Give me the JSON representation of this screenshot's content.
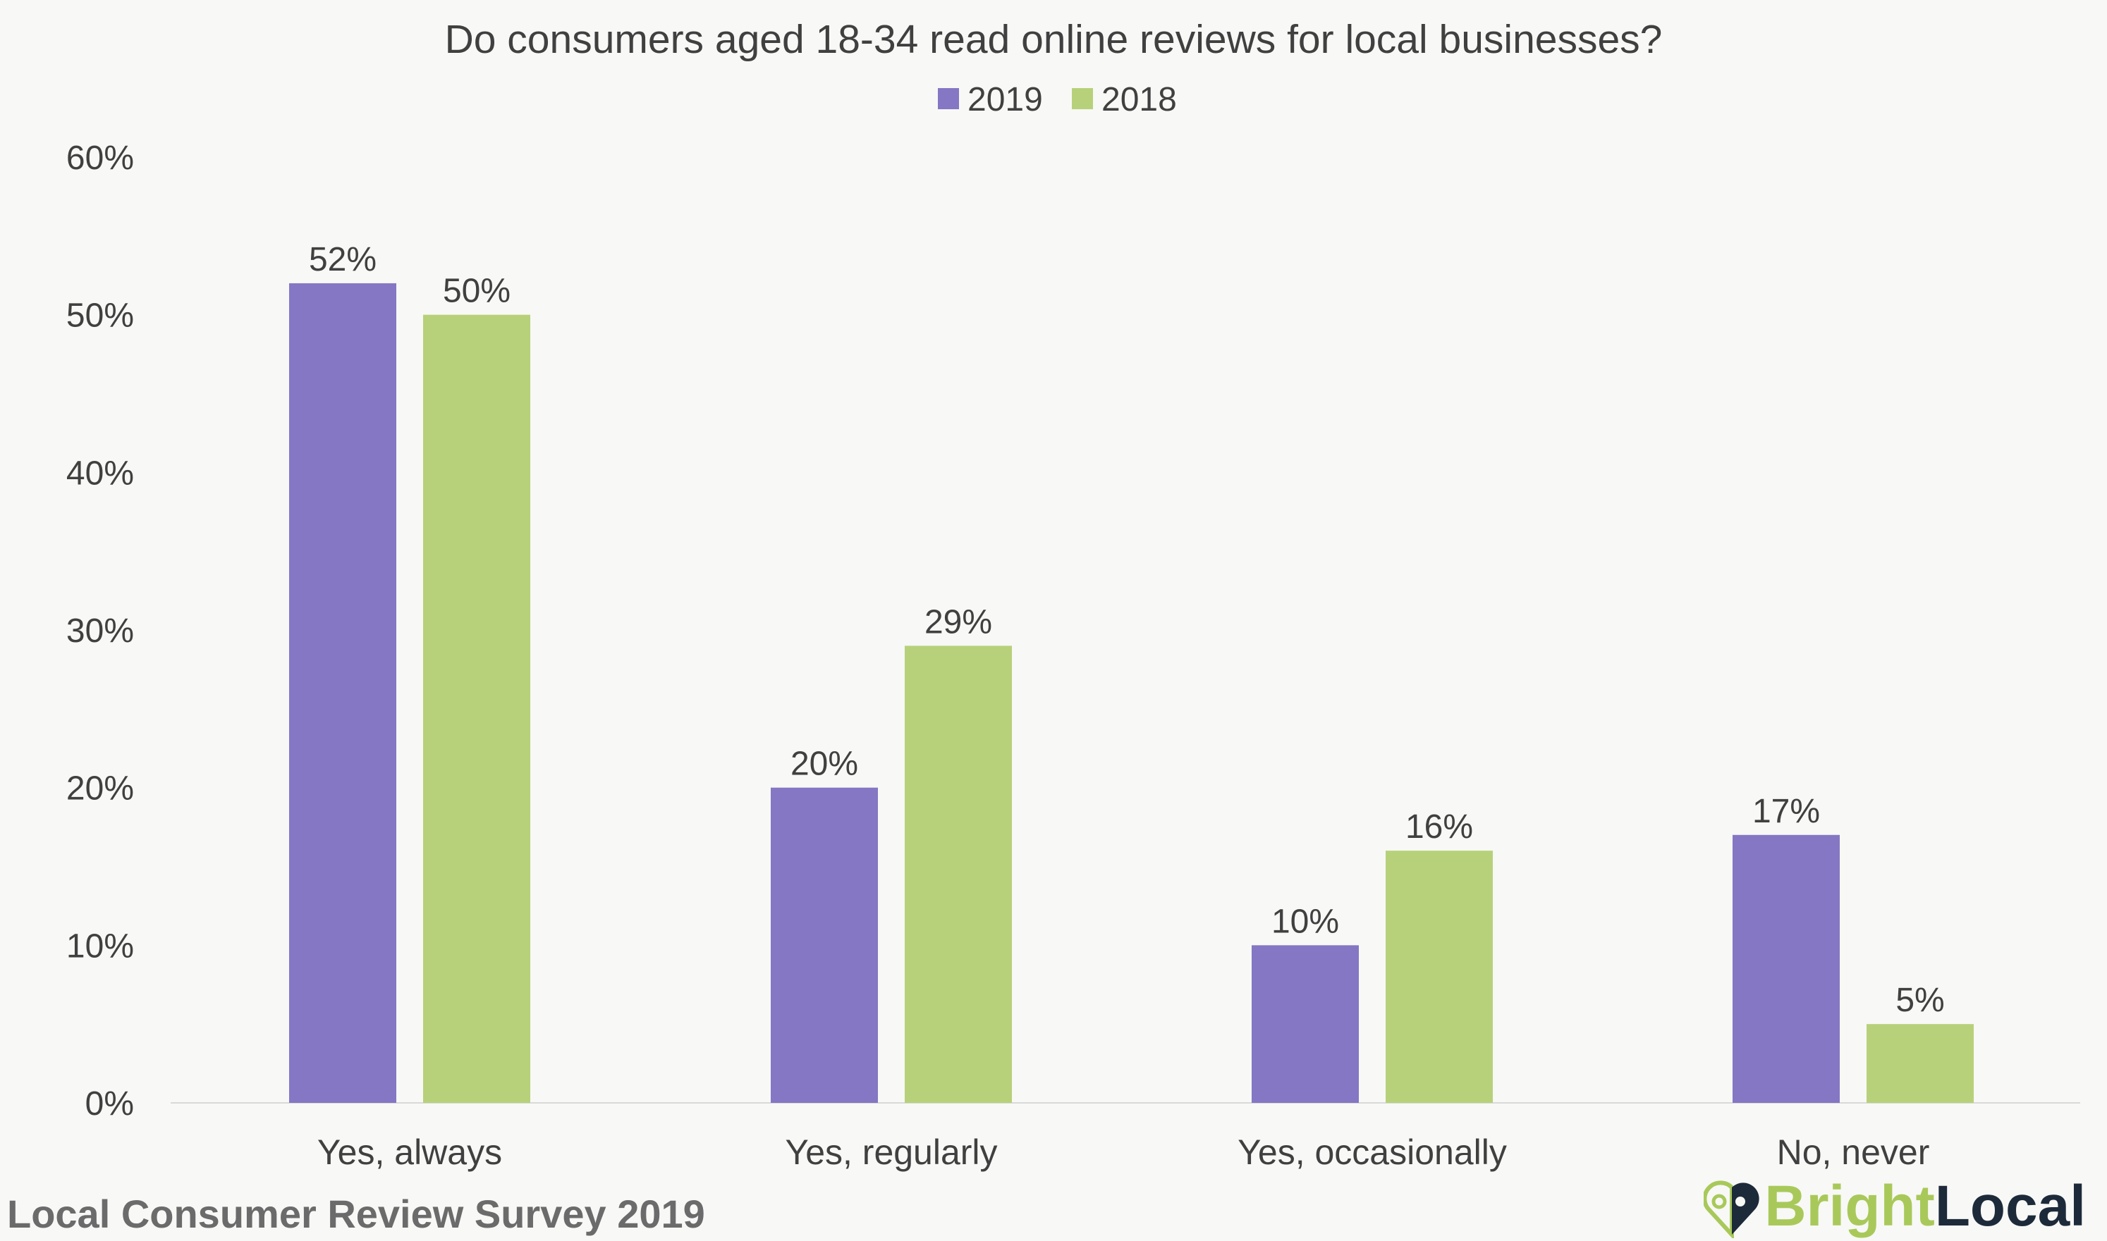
{
  "chart_data": {
    "type": "bar",
    "title": "Do consumers aged 18-34 read online reviews for local businesses?",
    "categories": [
      "Yes, always",
      "Yes, regularly",
      "Yes, occasionally",
      "No, never"
    ],
    "series": [
      {
        "name": "2019",
        "values": [
          52,
          20,
          10,
          17
        ],
        "labels": [
          "52%",
          "20%",
          "10%",
          "17%"
        ],
        "color": "#8577c4"
      },
      {
        "name": "2018",
        "values": [
          50,
          29,
          16,
          5
        ],
        "labels": [
          "50%",
          "29%",
          "16%",
          "5%"
        ],
        "color": "#b7d17a"
      }
    ],
    "ylim": [
      0,
      60
    ],
    "yticks": [
      0,
      10,
      20,
      30,
      40,
      50,
      60
    ],
    "ytick_labels": [
      "0%",
      "10%",
      "20%",
      "30%",
      "40%",
      "50%",
      "60%"
    ],
    "legend_position": "top-center",
    "grid": false
  },
  "footer": "Local Consumer Review Survey 2019",
  "logo": {
    "part1": "Bright",
    "part2": "Local",
    "colors": [
      "#a8c95a",
      "#1d2a3a"
    ]
  }
}
